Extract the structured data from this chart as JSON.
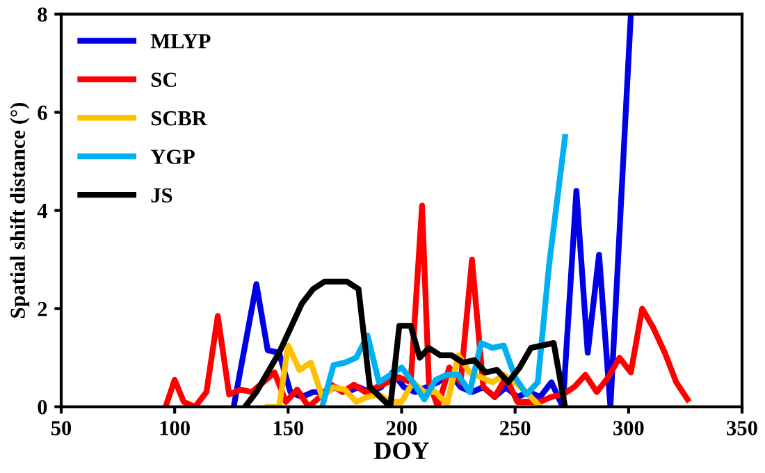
{
  "chart_data": {
    "type": "line",
    "xlabel": "DOY",
    "ylabel": "Spatial shift distance (°)",
    "xlim": [
      50,
      350
    ],
    "xticks": [
      50,
      100,
      150,
      200,
      250,
      300,
      350
    ],
    "ylim": [
      0,
      8
    ],
    "yticks": [
      0,
      2,
      4,
      6,
      8
    ],
    "grid": false,
    "legend": "top left",
    "marker": "none",
    "line_style": "solid",
    "series": [
      {
        "name": "MLYP",
        "color": "#0000e6",
        "x": [
          126,
          136,
          141,
          146,
          151,
          156,
          161,
          166,
          171,
          176,
          181,
          186,
          191,
          196,
          201,
          206,
          211,
          216,
          221,
          226,
          231,
          236,
          241,
          246,
          251,
          256,
          261,
          266,
          271,
          277,
          282,
          287,
          292,
          301
        ],
        "values": [
          0,
          2.5,
          1.15,
          1.1,
          0.3,
          0.2,
          0.3,
          0.3,
          0.4,
          0.3,
          0.4,
          0.3,
          0.4,
          0.7,
          0.4,
          0.3,
          0.4,
          0.5,
          0.7,
          0.4,
          0.3,
          0.4,
          0.2,
          0.4,
          0.2,
          0.3,
          0.2,
          0.5,
          0,
          4.4,
          1.1,
          3.1,
          0,
          8
        ]
      },
      {
        "name": "SC",
        "color": "#ff0000",
        "x": [
          96,
          100,
          104,
          109,
          114,
          119,
          124,
          129,
          134,
          139,
          144,
          149,
          154,
          159,
          164,
          169,
          174,
          179,
          184,
          189,
          194,
          199,
          204,
          209,
          212,
          216,
          221,
          226,
          231,
          236,
          241,
          246,
          251,
          256,
          261,
          266,
          271,
          276,
          281,
          286,
          291,
          296,
          301,
          306,
          311,
          316,
          321,
          326
        ],
        "values": [
          0,
          0.55,
          0.1,
          0,
          0.3,
          1.85,
          0.25,
          0.35,
          0.3,
          0.5,
          0.7,
          0.1,
          0.35,
          0,
          0.2,
          0.45,
          0.3,
          0.45,
          0.3,
          0.4,
          0.5,
          0.6,
          0.5,
          4.1,
          0.5,
          0,
          0.8,
          0.5,
          3.0,
          0.4,
          0.2,
          0.6,
          0.1,
          0.1,
          0.1,
          0.2,
          0.25,
          0.4,
          0.65,
          0.3,
          0.6,
          1.0,
          0.7,
          2.0,
          1.6,
          1.1,
          0.5,
          0.15
        ]
      },
      {
        "name": "SCBR",
        "color": "#ffc000",
        "x": [
          141,
          146,
          150,
          155,
          160,
          165,
          170,
          175,
          180,
          185,
          190,
          195,
          200,
          205,
          210,
          215,
          220,
          225,
          230,
          235,
          240,
          245,
          250,
          255,
          261
        ],
        "values": [
          0,
          0,
          1.25,
          0.75,
          0.9,
          0.2,
          0.4,
          0.35,
          0.1,
          0.2,
          0.25,
          0.1,
          0.1,
          0.5,
          0.3,
          0.3,
          0.05,
          1.05,
          0.7,
          0.6,
          0.5,
          0.65,
          0.5,
          0.3,
          0
        ]
      },
      {
        "name": "YGP",
        "color": "#00b0f0",
        "x": [
          165,
          170,
          175,
          180,
          185,
          190,
          195,
          200,
          205,
          210,
          215,
          220,
          225,
          230,
          235,
          240,
          245,
          250,
          255,
          260,
          265,
          272
        ],
        "values": [
          0,
          0.85,
          0.9,
          1.0,
          1.45,
          0.5,
          0.65,
          0.8,
          0.5,
          0.15,
          0.55,
          0.65,
          0.65,
          0.3,
          1.3,
          1.2,
          1.25,
          0.6,
          0.25,
          0.5,
          2.9,
          5.5
        ]
      },
      {
        "name": "JS",
        "color": "#000000",
        "x": [
          131,
          136,
          141,
          146,
          151,
          156,
          161,
          166,
          171,
          176,
          181,
          186,
          195,
          199,
          204,
          208,
          212,
          217,
          222,
          227,
          232,
          237,
          242,
          247,
          252,
          257,
          262,
          267,
          272
        ],
        "values": [
          0,
          0.3,
          0.7,
          1.1,
          1.6,
          2.1,
          2.4,
          2.55,
          2.55,
          2.55,
          2.4,
          0.4,
          0,
          1.65,
          1.65,
          1.0,
          1.2,
          1.05,
          1.05,
          0.9,
          0.95,
          0.7,
          0.75,
          0.5,
          0.8,
          1.2,
          1.25,
          1.3,
          0
        ]
      }
    ]
  }
}
